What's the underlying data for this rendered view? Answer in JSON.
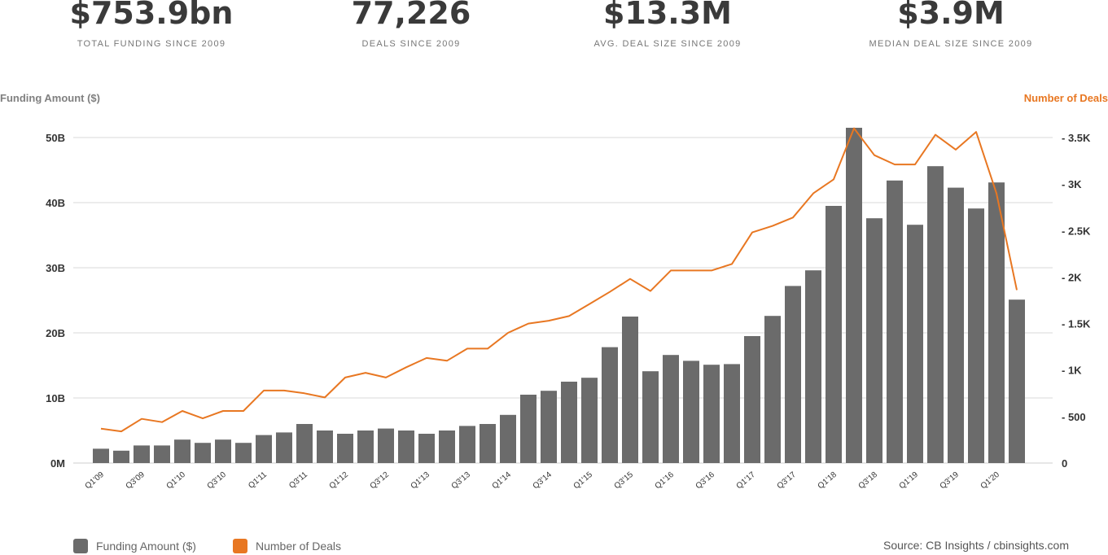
{
  "stats": [
    {
      "value": "$753.9bn",
      "label": "TOTAL FUNDING SINCE 2009"
    },
    {
      "value": "77,226",
      "label": "DEALS SINCE 2009"
    },
    {
      "value": "$13.3M",
      "label": "AVG. DEAL SIZE SINCE 2009"
    },
    {
      "value": "$3.9M",
      "label": "MEDIAN DEAL SIZE SINCE 2009"
    }
  ],
  "legend": {
    "funding": "Funding Amount ($)",
    "deals": "Number of Deals"
  },
  "source": "Source: CB Insights / cbinsights.com",
  "colors": {
    "bar": "#6b6b6b",
    "line": "#e87722",
    "grid": "#d9d9d9"
  },
  "chart_data": {
    "type": "bar",
    "ylabel": "Funding Amount ($)",
    "y2label": "Number of Deals",
    "ylim": [
      0,
      50
    ],
    "y2lim": [
      0,
      3500
    ],
    "yticks": [
      "0M",
      "10B",
      "20B",
      "30B",
      "40B",
      "50B"
    ],
    "y2ticks": [
      "0",
      "500",
      "1K",
      "1.5K",
      "2K",
      "2.5K",
      "3K",
      "3.5K"
    ],
    "categories": [
      "Q1'09",
      "Q2'09",
      "Q3'09",
      "Q4'09",
      "Q1'10",
      "Q2'10",
      "Q3'10",
      "Q4'10",
      "Q1'11",
      "Q2'11",
      "Q3'11",
      "Q4'11",
      "Q1'12",
      "Q2'12",
      "Q3'12",
      "Q4'12",
      "Q1'13",
      "Q2'13",
      "Q3'13",
      "Q4'13",
      "Q1'14",
      "Q2'14",
      "Q3'14",
      "Q4'14",
      "Q1'15",
      "Q2'15",
      "Q3'15",
      "Q4'15",
      "Q1'16",
      "Q2'16",
      "Q3'16",
      "Q4'16",
      "Q1'17",
      "Q2'17",
      "Q3'17",
      "Q4'17",
      "Q1'18",
      "Q2'18",
      "Q3'18",
      "Q4'18",
      "Q1'19",
      "Q2'19",
      "Q3'19",
      "Q4'19",
      "Q1'20",
      "Q2'20"
    ],
    "xtick_labels": [
      "Q1'09",
      "",
      "Q3'09",
      "",
      "Q1'10",
      "",
      "Q3'10",
      "",
      "Q1'11",
      "",
      "Q3'11",
      "",
      "Q1'12",
      "",
      "Q3'12",
      "",
      "Q1'13",
      "",
      "Q3'13",
      "",
      "Q1'14",
      "",
      "Q3'14",
      "",
      "Q1'15",
      "",
      "Q3'15",
      "",
      "Q1'16",
      "",
      "Q3'16",
      "",
      "Q1'17",
      "",
      "Q3'17",
      "",
      "Q1'18",
      "",
      "Q3'18",
      "",
      "Q1'19",
      "",
      "Q3'19",
      "",
      "Q1'20",
      ""
    ],
    "series": [
      {
        "name": "Funding Amount ($)",
        "type": "bar",
        "axis": "left",
        "values": [
          2.2,
          1.9,
          2.7,
          2.7,
          3.6,
          3.1,
          3.6,
          3.1,
          4.3,
          4.7,
          6.0,
          5.0,
          4.5,
          5.0,
          5.3,
          5.0,
          4.5,
          5.0,
          5.7,
          6.0,
          7.4,
          10.5,
          11.1,
          12.5,
          13.1,
          17.8,
          22.5,
          14.1,
          16.6,
          15.7,
          15.1,
          15.2,
          19.5,
          22.6,
          27.2,
          29.6,
          39.5,
          51.5,
          37.6,
          43.4,
          36.6,
          45.6,
          42.3,
          39.1,
          43.1,
          25.1
        ]
      },
      {
        "name": "Number of Deals",
        "type": "line",
        "axis": "right",
        "values": [
          370,
          340,
          475,
          440,
          560,
          480,
          560,
          560,
          780,
          780,
          750,
          705,
          920,
          970,
          920,
          1030,
          1130,
          1100,
          1230,
          1230,
          1400,
          1500,
          1530,
          1580,
          1710,
          1840,
          1980,
          1850,
          2070,
          2070,
          2070,
          2140,
          2480,
          2550,
          2640,
          2900,
          3050,
          3600,
          3310,
          3210,
          3210,
          3530,
          3370,
          3560,
          2900,
          1860
        ]
      }
    ]
  }
}
